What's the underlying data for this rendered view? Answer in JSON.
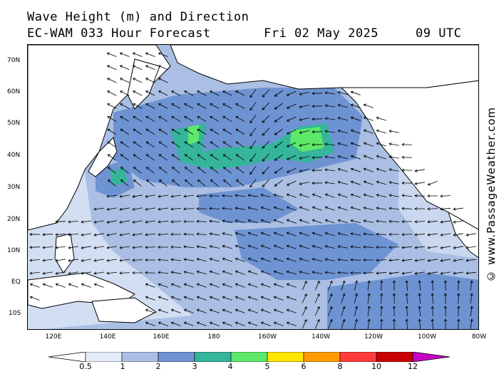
{
  "header": {
    "line1": "Wave Height (m) and Direction",
    "model": "EC-WAM 033 Hour Forecast",
    "date": "Fri 02 May 2025",
    "time": "09 UTC"
  },
  "lat_labels": [
    "70N",
    "60N",
    "50N",
    "40N",
    "30N",
    "20N",
    "10N",
    "EQ",
    "10S"
  ],
  "lon_labels": [
    "120E",
    "140E",
    "160E",
    "180",
    "160W",
    "140W",
    "120W",
    "100W",
    "80W"
  ],
  "credit": "© www.PassageWeather.com",
  "colorbar": {
    "unit": "m",
    "labels": [
      "0.5",
      "1",
      "2",
      "3",
      "4",
      "5",
      "6",
      "8",
      "10",
      "12"
    ],
    "colors": [
      "#e6ecf8",
      "#aabfe3",
      "#6e93d2",
      "#35b59b",
      "#5ee86a",
      "#ffe400",
      "#ff9a00",
      "#ff3a3a",
      "#c80000",
      "#c800c8"
    ]
  },
  "map": {
    "land_color": "#ffffff",
    "ocean_base_color": "#c5d6ee"
  }
}
